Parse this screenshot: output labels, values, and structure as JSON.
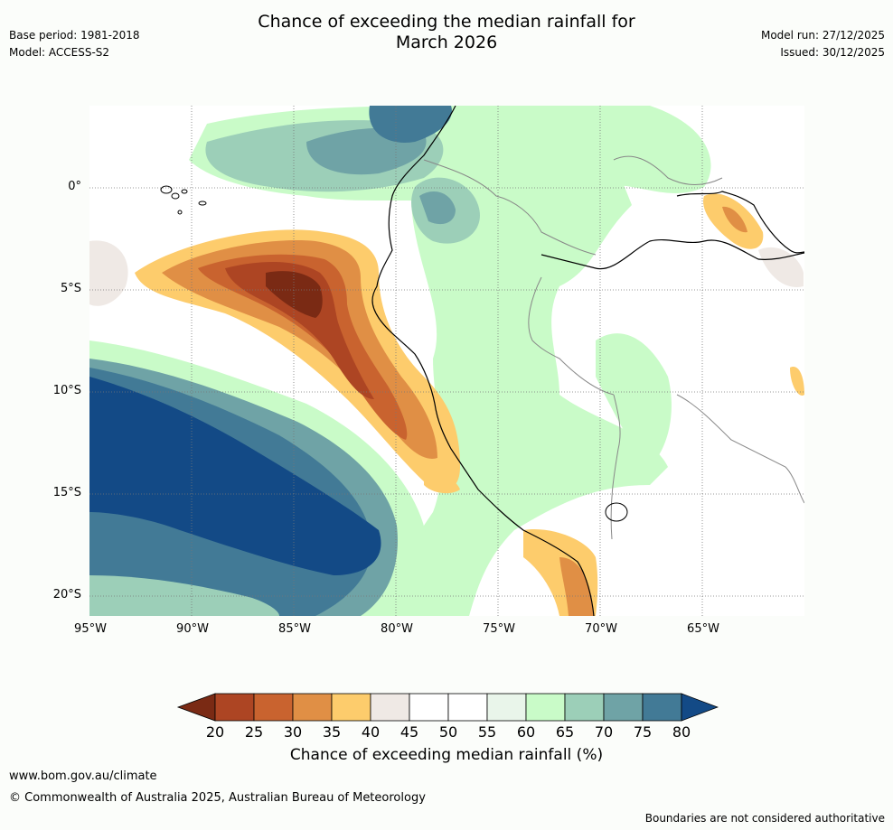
{
  "header": {
    "title_line1": "Chance of exceeding the median rainfall for",
    "title_line2": "March 2026",
    "base_period": "Base period: 1981-2018",
    "model": "Model: ACCESS-S2",
    "model_run": "Model run: 27/12/2025",
    "issued": "Issued: 30/12/2025"
  },
  "map": {
    "lat_labels": [
      "0°",
      "5°S",
      "10°S",
      "15°S",
      "20°S"
    ],
    "lon_labels": [
      "95°W",
      "90°W",
      "85°W",
      "80°W",
      "75°W",
      "70°W",
      "65°W"
    ]
  },
  "legend": {
    "ticks": [
      "20",
      "25",
      "30",
      "35",
      "40",
      "45",
      "50",
      "55",
      "60",
      "65",
      "70",
      "75",
      "80"
    ],
    "title": "Chance of exceeding median rainfall (%)",
    "colors": [
      "#7a2a14",
      "#ad4523",
      "#c9632f",
      "#e08f45",
      "#fdcc6c",
      "#efe9e5",
      "#ffffff",
      "#ffffff",
      "#e9f5ea",
      "#c9fbc8",
      "#9ccfb8",
      "#6fa3a6",
      "#427a96",
      "#134a86"
    ]
  },
  "footer": {
    "url": "www.bom.gov.au/climate",
    "copyright": "© Commonwealth of Australia 2025, Australian Bureau of Meteorology",
    "disclaimer": "Boundaries are not considered authoritative"
  }
}
